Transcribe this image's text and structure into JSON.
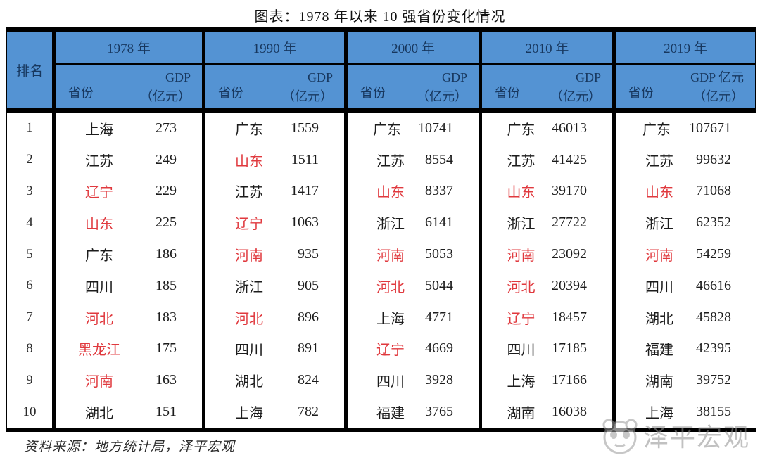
{
  "title": "图表：1978 年以来 10 强省份变化情况",
  "source_note": "资料来源：地方统计局，泽平宏观",
  "watermark_text": "泽平宏观",
  "colors": {
    "header_bg": "#5493d3",
    "header_text": "#17375e",
    "highlight_red": "#e0393e",
    "border": "#000000"
  },
  "chart_data": {
    "type": "table",
    "title": "图表：1978 年以来 10 强省份变化情况",
    "rank_header": "排名",
    "source": "资料来源：地方统计局，泽平宏观",
    "columns": [
      {
        "year": "1978 年",
        "province_header": "省份",
        "gdp_header": "GDP",
        "gdp_unit": "（亿元）",
        "rows": [
          {
            "rank": 1,
            "province": "上海",
            "gdp": 273,
            "highlight": false
          },
          {
            "rank": 2,
            "province": "江苏",
            "gdp": 249,
            "highlight": false
          },
          {
            "rank": 3,
            "province": "辽宁",
            "gdp": 229,
            "highlight": true
          },
          {
            "rank": 4,
            "province": "山东",
            "gdp": 225,
            "highlight": true
          },
          {
            "rank": 5,
            "province": "广东",
            "gdp": 186,
            "highlight": false
          },
          {
            "rank": 6,
            "province": "四川",
            "gdp": 185,
            "highlight": false
          },
          {
            "rank": 7,
            "province": "河北",
            "gdp": 183,
            "highlight": true
          },
          {
            "rank": 8,
            "province": "黑龙江",
            "gdp": 175,
            "highlight": true
          },
          {
            "rank": 9,
            "province": "河南",
            "gdp": 163,
            "highlight": true
          },
          {
            "rank": 10,
            "province": "湖北",
            "gdp": 151,
            "highlight": false
          }
        ]
      },
      {
        "year": "1990 年",
        "province_header": "省份",
        "gdp_header": "GDP",
        "gdp_unit": "（亿元）",
        "rows": [
          {
            "rank": 1,
            "province": "广东",
            "gdp": 1559,
            "highlight": false
          },
          {
            "rank": 2,
            "province": "山东",
            "gdp": 1511,
            "highlight": true
          },
          {
            "rank": 3,
            "province": "江苏",
            "gdp": 1417,
            "highlight": false
          },
          {
            "rank": 4,
            "province": "辽宁",
            "gdp": 1063,
            "highlight": true
          },
          {
            "rank": 5,
            "province": "河南",
            "gdp": 935,
            "highlight": true
          },
          {
            "rank": 6,
            "province": "浙江",
            "gdp": 905,
            "highlight": false
          },
          {
            "rank": 7,
            "province": "河北",
            "gdp": 896,
            "highlight": true
          },
          {
            "rank": 8,
            "province": "四川",
            "gdp": 891,
            "highlight": false
          },
          {
            "rank": 9,
            "province": "湖北",
            "gdp": 824,
            "highlight": false
          },
          {
            "rank": 10,
            "province": "上海",
            "gdp": 782,
            "highlight": false
          }
        ]
      },
      {
        "year": "2000 年",
        "province_header": "省份",
        "gdp_header": "GDP",
        "gdp_unit": "（亿元）",
        "rows": [
          {
            "rank": 1,
            "province": "广东",
            "gdp": 10741,
            "highlight": false
          },
          {
            "rank": 2,
            "province": "江苏",
            "gdp": 8554,
            "highlight": false
          },
          {
            "rank": 3,
            "province": "山东",
            "gdp": 8337,
            "highlight": true
          },
          {
            "rank": 4,
            "province": "浙江",
            "gdp": 6141,
            "highlight": false
          },
          {
            "rank": 5,
            "province": "河南",
            "gdp": 5053,
            "highlight": true
          },
          {
            "rank": 6,
            "province": "河北",
            "gdp": 5044,
            "highlight": true
          },
          {
            "rank": 7,
            "province": "上海",
            "gdp": 4771,
            "highlight": false
          },
          {
            "rank": 8,
            "province": "辽宁",
            "gdp": 4669,
            "highlight": true
          },
          {
            "rank": 9,
            "province": "四川",
            "gdp": 3928,
            "highlight": false
          },
          {
            "rank": 10,
            "province": "福建",
            "gdp": 3765,
            "highlight": false
          }
        ]
      },
      {
        "year": "2010 年",
        "province_header": "省份",
        "gdp_header": "GDP",
        "gdp_unit": "（亿元）",
        "rows": [
          {
            "rank": 1,
            "province": "广东",
            "gdp": 46013,
            "highlight": false
          },
          {
            "rank": 2,
            "province": "江苏",
            "gdp": 41425,
            "highlight": false
          },
          {
            "rank": 3,
            "province": "山东",
            "gdp": 39170,
            "highlight": true
          },
          {
            "rank": 4,
            "province": "浙江",
            "gdp": 27722,
            "highlight": false
          },
          {
            "rank": 5,
            "province": "河南",
            "gdp": 23092,
            "highlight": true
          },
          {
            "rank": 6,
            "province": "河北",
            "gdp": 20394,
            "highlight": true
          },
          {
            "rank": 7,
            "province": "辽宁",
            "gdp": 18457,
            "highlight": true
          },
          {
            "rank": 8,
            "province": "四川",
            "gdp": 17185,
            "highlight": false
          },
          {
            "rank": 9,
            "province": "上海",
            "gdp": 17166,
            "highlight": false
          },
          {
            "rank": 10,
            "province": "湖南",
            "gdp": 16038,
            "highlight": false
          }
        ]
      },
      {
        "year": "2019 年",
        "province_header": "省份",
        "gdp_header": "GDP 亿元",
        "gdp_unit": "（亿元）",
        "rows": [
          {
            "rank": 1,
            "province": "广东",
            "gdp": 107671,
            "highlight": false
          },
          {
            "rank": 2,
            "province": "江苏",
            "gdp": 99632,
            "highlight": false
          },
          {
            "rank": 3,
            "province": "山东",
            "gdp": 71068,
            "highlight": true
          },
          {
            "rank": 4,
            "province": "浙江",
            "gdp": 62352,
            "highlight": false
          },
          {
            "rank": 5,
            "province": "河南",
            "gdp": 54259,
            "highlight": true
          },
          {
            "rank": 6,
            "province": "四川",
            "gdp": 46616,
            "highlight": false
          },
          {
            "rank": 7,
            "province": "湖北",
            "gdp": 45828,
            "highlight": false
          },
          {
            "rank": 8,
            "province": "福建",
            "gdp": 42395,
            "highlight": false
          },
          {
            "rank": 9,
            "province": "湖南",
            "gdp": 39752,
            "highlight": false
          },
          {
            "rank": 10,
            "province": "上海",
            "gdp": 38155,
            "highlight": false
          }
        ]
      }
    ]
  }
}
